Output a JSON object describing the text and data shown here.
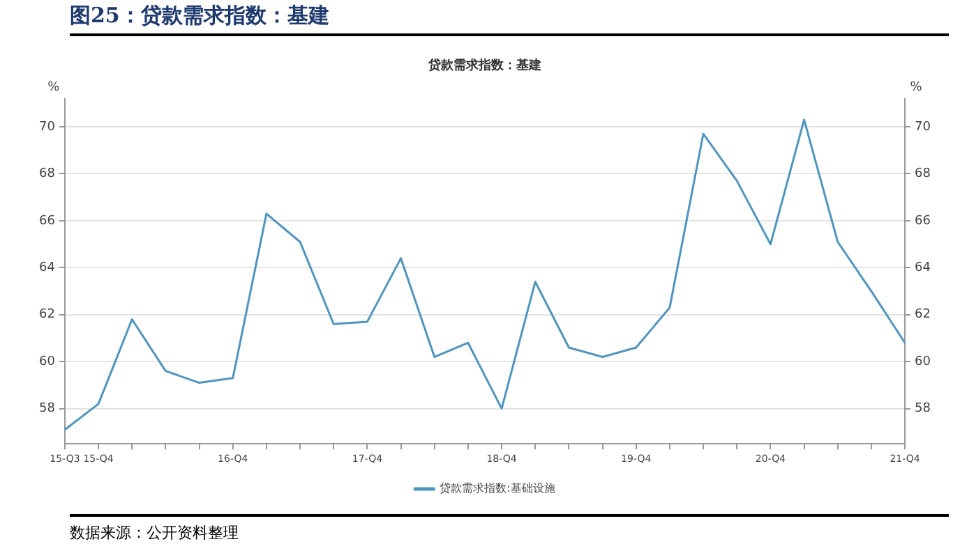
{
  "chart_data": {
    "type": "line",
    "title": "图25：贷款需求指数：基建",
    "subtitle": "贷款需求指数：基建",
    "ylabel": "%",
    "y2label": "%",
    "categories": [
      "15-Q3",
      "15-Q4",
      null,
      null,
      null,
      "16-Q4",
      null,
      null,
      null,
      "17-Q4",
      null,
      null,
      null,
      "18-Q4",
      null,
      null,
      null,
      "19-Q4",
      null,
      null,
      null,
      "20-Q4",
      null,
      null,
      null,
      "21-Q4"
    ],
    "series": [
      {
        "name": "贷款需求指数:基础设施",
        "color": "#4f95bd",
        "values": [
          57.1,
          58.2,
          61.8,
          59.6,
          59.1,
          59.3,
          66.3,
          65.1,
          61.6,
          61.7,
          64.4,
          60.2,
          60.8,
          58.0,
          63.4,
          60.6,
          60.2,
          60.6,
          62.3,
          69.7,
          67.7,
          65.0,
          70.3,
          65.1,
          63.0,
          60.8
        ]
      }
    ],
    "ylim": [
      56.5,
      71.2
    ],
    "yticks": [
      58,
      60,
      62,
      64,
      66,
      68,
      70
    ],
    "y2lim": [
      56.5,
      71.2
    ],
    "y2ticks": [
      58,
      60,
      62,
      64,
      66,
      68,
      70
    ],
    "grid": "y",
    "legend": "bottom",
    "marker": "none",
    "line_style": "solid",
    "annotations": [
      "数据来源：公开资料整理"
    ]
  }
}
